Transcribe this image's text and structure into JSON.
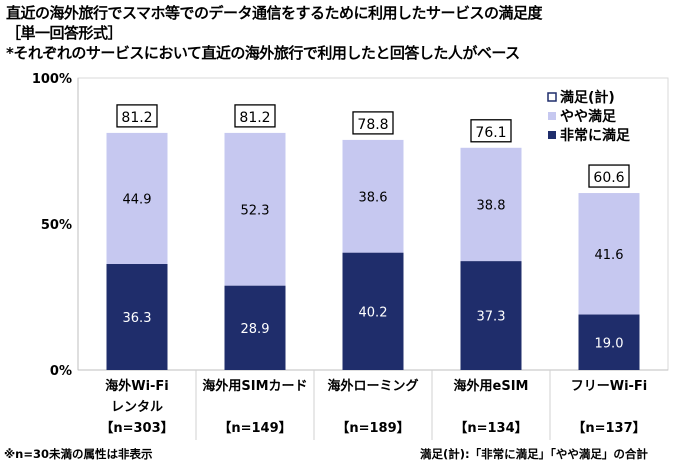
{
  "title": "直近の海外旅行でスマホ等でのデータ通信をするために利用したサービスの満足度",
  "subtitle": "［単一回答形式］",
  "note": "*それぞれのサービスにおいて直近の海外旅行で利用したと回答した人がベース",
  "footnote_left": "※n=30未満の属性は非表示",
  "footnote_right": "満足(計):「非常に満足」「やや満足」の合計",
  "chart_data": {
    "type": "bar",
    "stacked": true,
    "categories": [
      [
        "海外Wi-Fi",
        "レンタル",
        "【n=303】"
      ],
      [
        "海外用SIMカード",
        "",
        "【n=149】"
      ],
      [
        "海外ローミング",
        "",
        "【n=189】"
      ],
      [
        "海外用eSIM",
        "",
        "【n=134】"
      ],
      [
        "フリーWi-Fi",
        "",
        "【n=137】"
      ]
    ],
    "series": [
      {
        "name": "非常に満足",
        "values": [
          36.3,
          28.9,
          40.2,
          37.3,
          19.0
        ],
        "color": "#1f2d6b"
      },
      {
        "name": "やや満足",
        "values": [
          44.9,
          52.3,
          38.6,
          38.8,
          41.6
        ],
        "color": "#c6c8f0"
      }
    ],
    "totals": {
      "name": "満足(計)",
      "values": [
        81.2,
        81.2,
        78.8,
        76.1,
        60.6
      ]
    },
    "ylim": [
      0,
      100
    ],
    "yticks": [
      "0%",
      "50%",
      "100%"
    ],
    "legend": "top-right",
    "grid": false
  }
}
